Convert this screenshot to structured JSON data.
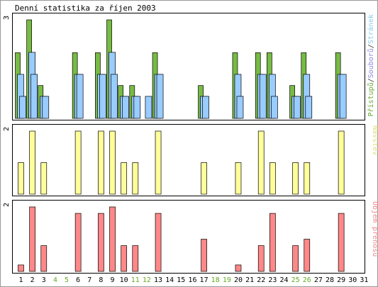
{
  "chart_data": [
    {
      "type": "bar",
      "title": "Denní statistika za říjen 2003",
      "ylim": [
        0,
        3
      ],
      "ytick_label": "3",
      "legend": [
        {
          "text": "Přístupů",
          "color": "#66aa33"
        },
        {
          "text": "/",
          "color": "#333333"
        },
        {
          "text": "Souborů",
          "color": "#8888dd"
        },
        {
          "text": "/",
          "color": "#333333"
        },
        {
          "text": "Stránek",
          "color": "#88ccee"
        }
      ],
      "series": [
        {
          "name": "Přístupů",
          "color": "#77bb44",
          "values": [
            2,
            3,
            1,
            0,
            0,
            2,
            0,
            2,
            3,
            1,
            1,
            0,
            2,
            0,
            0,
            0,
            1,
            0,
            0,
            2,
            0,
            2,
            2,
            0,
            1,
            2,
            0,
            0,
            2,
            0,
            0
          ]
        },
        {
          "name": "Souborů",
          "color": "#99ccff",
          "values": [
            2,
            3,
            1,
            0,
            0,
            2,
            0,
            2,
            3,
            1,
            1,
            0,
            2,
            0,
            0,
            0,
            1,
            0,
            0,
            2,
            0,
            2,
            2,
            0,
            1,
            2,
            0,
            0,
            2,
            0,
            0
          ]
        },
        {
          "name": "Stránek",
          "color": "#99ccff",
          "values": [
            1,
            2,
            1,
            0,
            0,
            2,
            0,
            2,
            2,
            1,
            1,
            1,
            2,
            0,
            0,
            0,
            1,
            0,
            0,
            1,
            0,
            2,
            1,
            0,
            1,
            1,
            0,
            0,
            2,
            0,
            0
          ]
        }
      ]
    },
    {
      "type": "bar",
      "ylim": [
        0,
        2
      ],
      "ytick_label": "2",
      "legend": [
        {
          "text": "Návštěv",
          "color": "#dddd77"
        }
      ],
      "series": [
        {
          "name": "Návštěv",
          "color": "#ffff99",
          "values": [
            1,
            2,
            1,
            0,
            0,
            2,
            0,
            2,
            2,
            1,
            1,
            0,
            2,
            0,
            0,
            0,
            1,
            0,
            0,
            1,
            0,
            2,
            1,
            0,
            1,
            1,
            0,
            0,
            2,
            0,
            0
          ]
        }
      ]
    },
    {
      "type": "bar",
      "ylim": [
        0,
        2
      ],
      "ytick_label": "2",
      "legend": [
        {
          "text": "Objem přenosu",
          "color": "#ee8888"
        }
      ],
      "series": [
        {
          "name": "Objem přenosu",
          "color": "#ff8888",
          "values": [
            0.2,
            2,
            0.8,
            0,
            0,
            1.8,
            0,
            1.8,
            2,
            0.8,
            0.8,
            0,
            1.8,
            0,
            0,
            0,
            1,
            0,
            0,
            0.2,
            0,
            0.8,
            1.8,
            0,
            0.8,
            1,
            0,
            0,
            1.8,
            0,
            0
          ]
        }
      ]
    }
  ],
  "x_labels": [
    "1",
    "2",
    "3",
    "4",
    "5",
    "6",
    "7",
    "8",
    "9",
    "10",
    "11",
    "12",
    "13",
    "14",
    "15",
    "16",
    "17",
    "18",
    "19",
    "20",
    "21",
    "22",
    "23",
    "24",
    "25",
    "26",
    "27",
    "28",
    "29",
    "30",
    "31"
  ],
  "weekend_days": [
    4,
    5,
    11,
    12,
    18,
    19,
    25,
    26
  ],
  "colors": {
    "weekday": "#000000",
    "weekend": "#66aa22",
    "frame": "#000000",
    "border": "#999999"
  }
}
